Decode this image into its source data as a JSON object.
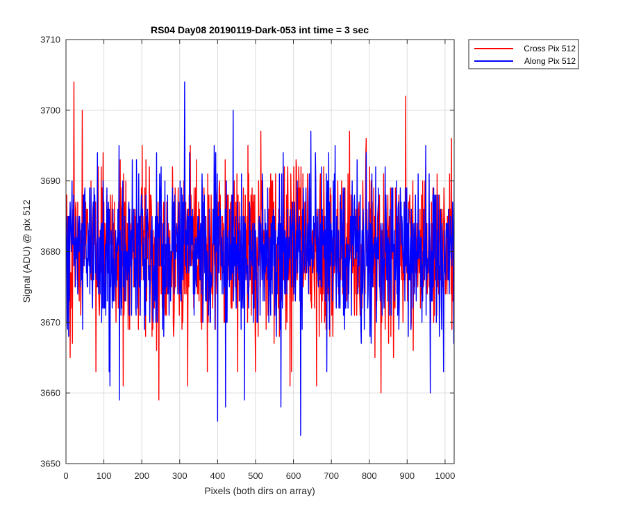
{
  "chart_data": {
    "type": "line",
    "title": "RS04 Day08 20190119-Dark-053 int time = 3 sec",
    "xlabel": "Pixels (both dirs on array)",
    "ylabel": "Signal (ADU) @ pix 512",
    "xlim": [
      0,
      1024
    ],
    "ylim": [
      3650,
      3710
    ],
    "xticks": [
      0,
      100,
      200,
      300,
      400,
      500,
      600,
      700,
      800,
      900,
      1000
    ],
    "yticks": [
      3650,
      3660,
      3670,
      3680,
      3690,
      3700,
      3710
    ],
    "grid": true,
    "legend_position": "outside-top-right",
    "n_points": 1024,
    "series": [
      {
        "name": "Cross Pix 512",
        "color": "#ff0000",
        "mean": 3680,
        "noise_std": 5.8,
        "peaks": [
          {
            "x": 20,
            "y": 3704
          },
          {
            "x": 42,
            "y": 3700
          },
          {
            "x": 895,
            "y": 3702
          },
          {
            "x": 10,
            "y": 3665
          },
          {
            "x": 150,
            "y": 3661
          },
          {
            "x": 244,
            "y": 3659
          },
          {
            "x": 830,
            "y": 3660
          },
          {
            "x": 78,
            "y": 3663
          },
          {
            "x": 590,
            "y": 3661
          },
          {
            "x": 660,
            "y": 3661
          },
          {
            "x": 320,
            "y": 3661
          }
        ]
      },
      {
        "name": "Along Pix 512",
        "color": "#0000ff",
        "mean": 3680,
        "noise_std": 5.5,
        "peaks": [
          {
            "x": 312,
            "y": 3704
          },
          {
            "x": 618,
            "y": 3654
          },
          {
            "x": 399,
            "y": 3656
          },
          {
            "x": 140,
            "y": 3659
          },
          {
            "x": 420,
            "y": 3658
          },
          {
            "x": 566,
            "y": 3658
          },
          {
            "x": 470,
            "y": 3659
          },
          {
            "x": 960,
            "y": 3660
          },
          {
            "x": 440,
            "y": 3700
          },
          {
            "x": 645,
            "y": 3697
          },
          {
            "x": 115,
            "y": 3661
          }
        ]
      }
    ]
  },
  "colors": {
    "axis": "#262626",
    "grid": "#dcdcdc",
    "background": "#ffffff"
  }
}
